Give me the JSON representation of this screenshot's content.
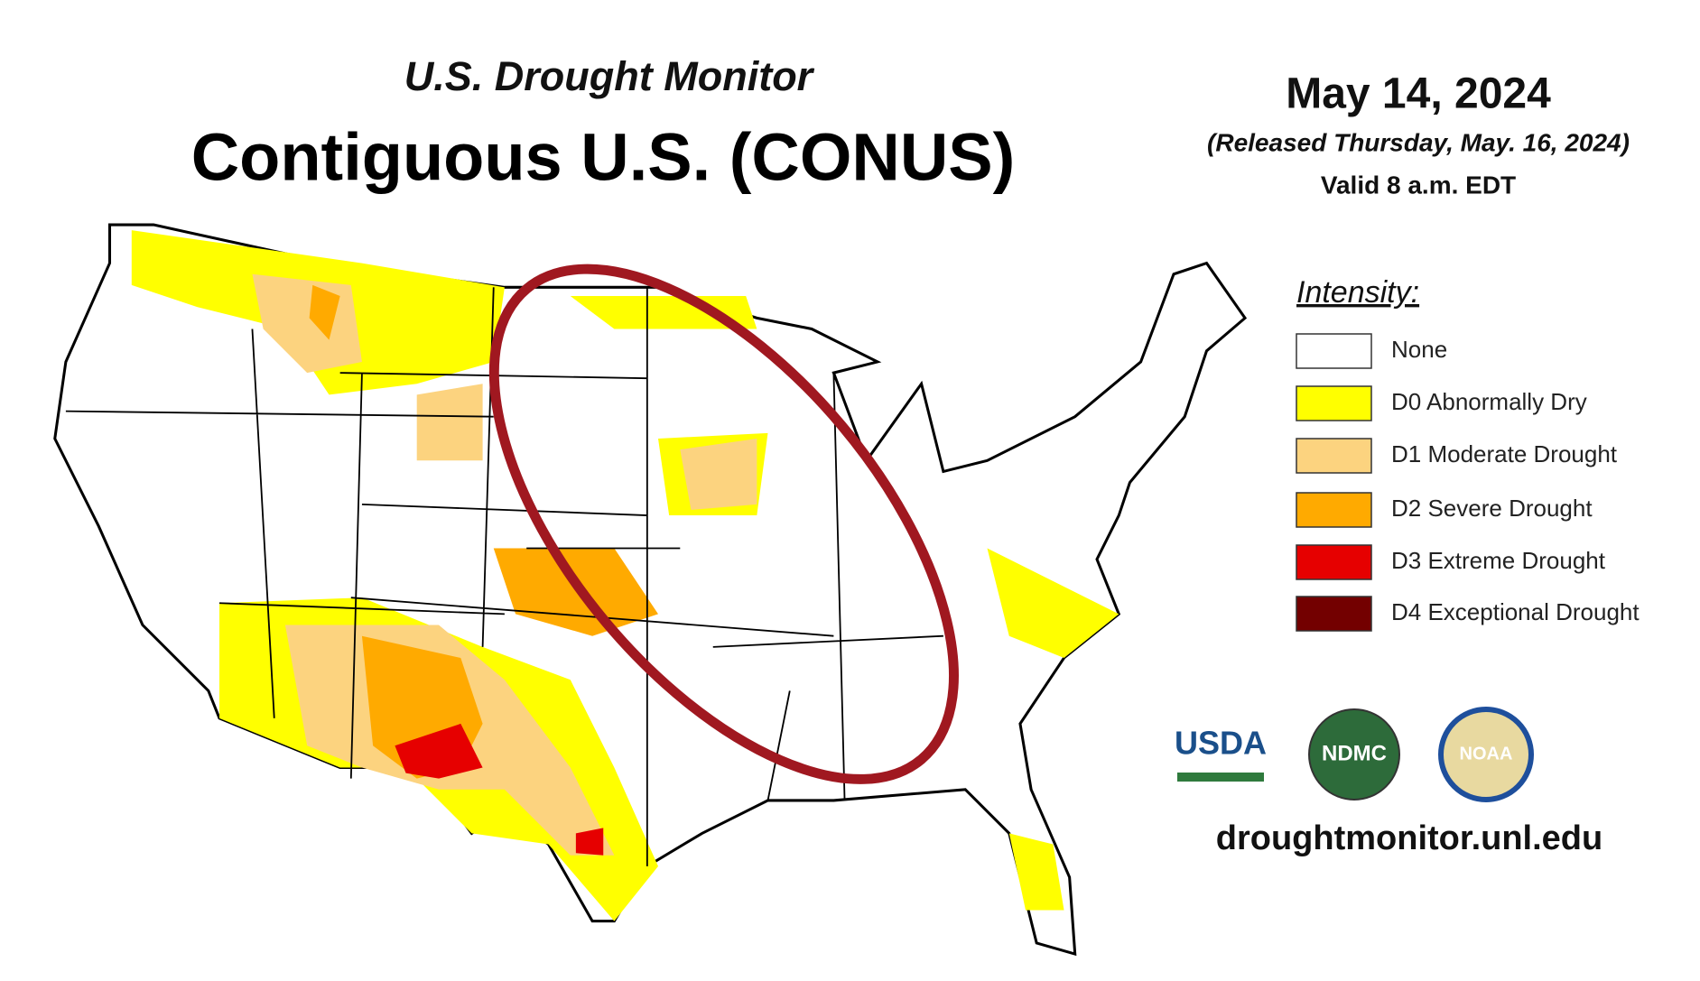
{
  "header": {
    "subtitle": "U.S. Drought Monitor",
    "title": "Contiguous U.S. (CONUS)"
  },
  "date_block": {
    "date": "May 14, 2024",
    "released": "(Released Thursday, May. 16, 2024)",
    "valid": "Valid 8 a.m. EDT"
  },
  "legend": {
    "title": "Intensity:",
    "items": [
      {
        "label": "None",
        "color": "#ffffff"
      },
      {
        "label": "D0 Abnormally Dry",
        "color": "#ffff00"
      },
      {
        "label": "D1 Moderate Drought",
        "color": "#fcd37f"
      },
      {
        "label": "D2 Severe Drought",
        "color": "#ffaa00"
      },
      {
        "label": "D3 Extreme Drought",
        "color": "#e60000"
      },
      {
        "label": "D4 Exceptional Drought",
        "color": "#730000"
      }
    ]
  },
  "logos": [
    "USDA",
    "NDMC",
    "NOAA"
  ],
  "footer": {
    "url": "droughtmonitor.unl.edu"
  }
}
